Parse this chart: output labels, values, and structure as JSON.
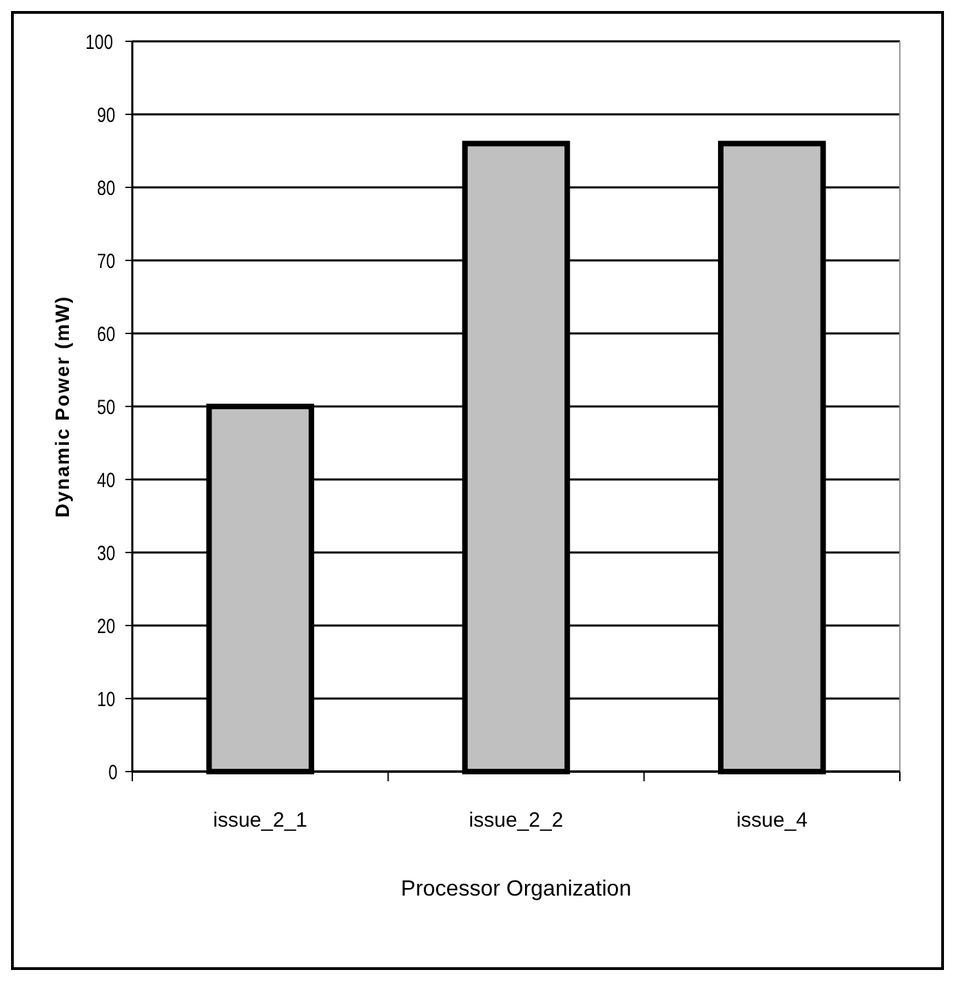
{
  "chart_data": {
    "type": "bar",
    "xlabel": "Processor Organization",
    "ylabel": "Dynamic Power (mW)",
    "categories": [
      "issue_2_1",
      "issue_2_2",
      "issue_4"
    ],
    "values": [
      50,
      86,
      86
    ],
    "color": "#c0c0c0",
    "ylim": [
      0,
      100
    ],
    "yticks": [
      0,
      10,
      20,
      30,
      40,
      50,
      60,
      70,
      80,
      90,
      100
    ],
    "grid": "y"
  }
}
